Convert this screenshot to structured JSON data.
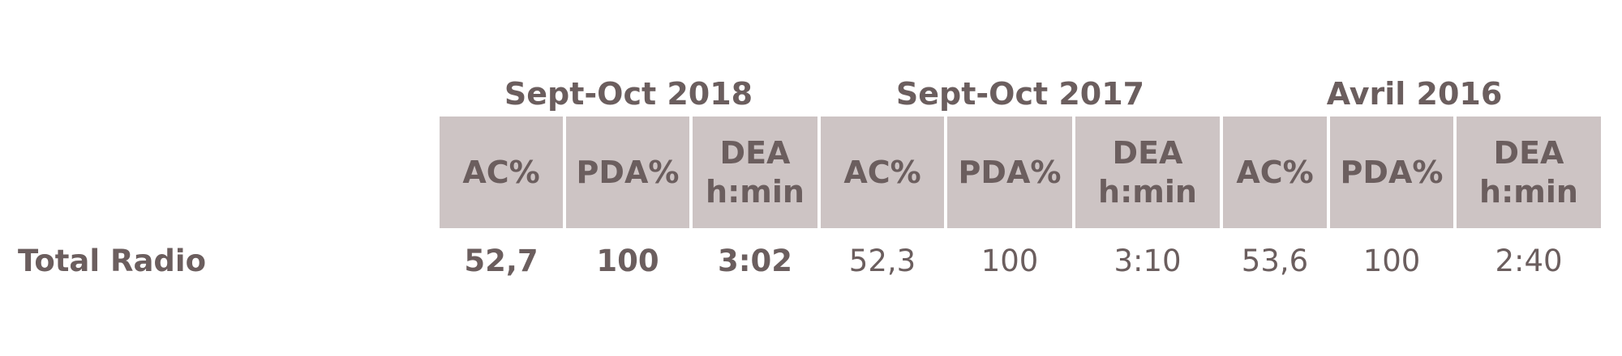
{
  "chart_data": {
    "type": "table",
    "periods": [
      "Sept-Oct 2018",
      "Sept-Oct 2017",
      "Avril 2016"
    ],
    "columns": [
      [
        "AC%",
        "PDA%",
        "DEA\nh:min"
      ],
      [
        "AC%",
        "PDA%",
        "DEA\nh:min"
      ],
      [
        "AC%",
        "PDA%",
        "DEA\nh:min"
      ]
    ],
    "rows": [
      {
        "label": "Total Radio",
        "values": [
          [
            "52,7",
            "100",
            "3:02"
          ],
          [
            "52,3",
            "100",
            "3:10"
          ],
          [
            "53,6",
            "100",
            "2:40"
          ]
        ]
      }
    ]
  }
}
